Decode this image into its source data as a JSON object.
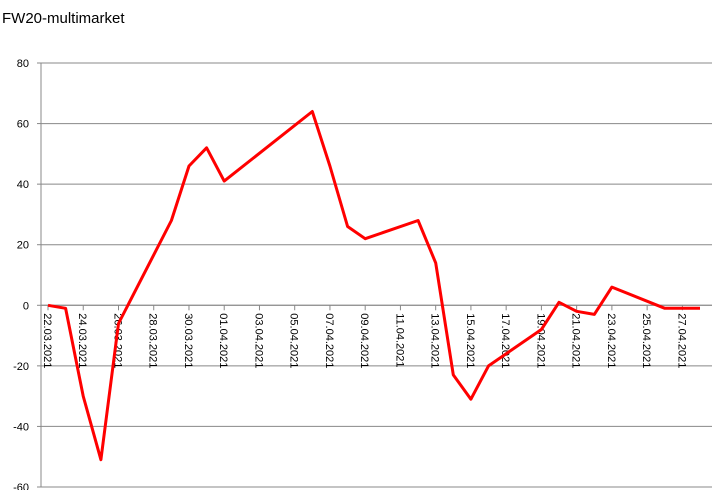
{
  "chart_data": {
    "type": "line",
    "title": "FW20-multimarket",
    "x": [
      "22.03.2021",
      "23.03.2021",
      "24.03.2021",
      "25.03.2021",
      "26.03.2021",
      "29.03.2021",
      "30.03.2021",
      "31.03.2021",
      "01.04.2021",
      "06.04.2021",
      "07.04.2021",
      "08.04.2021",
      "09.04.2021",
      "12.04.2021",
      "13.04.2021",
      "14.04.2021",
      "15.04.2021",
      "16.04.2021",
      "19.04.2021",
      "20.04.2021",
      "21.04.2021",
      "22.04.2021",
      "23.04.2021",
      "26.04.2021",
      "27.04.2021",
      "28.04.2021"
    ],
    "series": [
      {
        "name": "FW20-multimarket",
        "color": "#ff0000",
        "values": [
          0,
          -1,
          -30,
          -51,
          -6,
          28,
          46,
          52,
          41,
          64,
          46,
          26,
          22,
          28,
          14,
          -23,
          -31,
          -20,
          -8,
          1,
          -2,
          -3,
          6,
          -1,
          -1,
          -1
        ]
      }
    ],
    "xlim": [
      "22.03.2021",
      "28.04.2021"
    ],
    "xticks": [
      "22.03.2021",
      "24.03.2021",
      "26.03.2021",
      "28.03.2021",
      "30.03.2021",
      "01.04.2021",
      "03.04.2021",
      "05.04.2021",
      "07.04.2021",
      "09.04.2021",
      "11.04.2021",
      "13.04.2021",
      "15.04.2021",
      "17.04.2021",
      "19.04.2021",
      "21.04.2021",
      "23.04.2021",
      "25.04.2021",
      "27.04.2021"
    ],
    "ylim": [
      -60,
      80
    ],
    "yticks": [
      -60,
      -40,
      -20,
      0,
      20,
      40,
      60,
      80
    ],
    "grid": true
  }
}
